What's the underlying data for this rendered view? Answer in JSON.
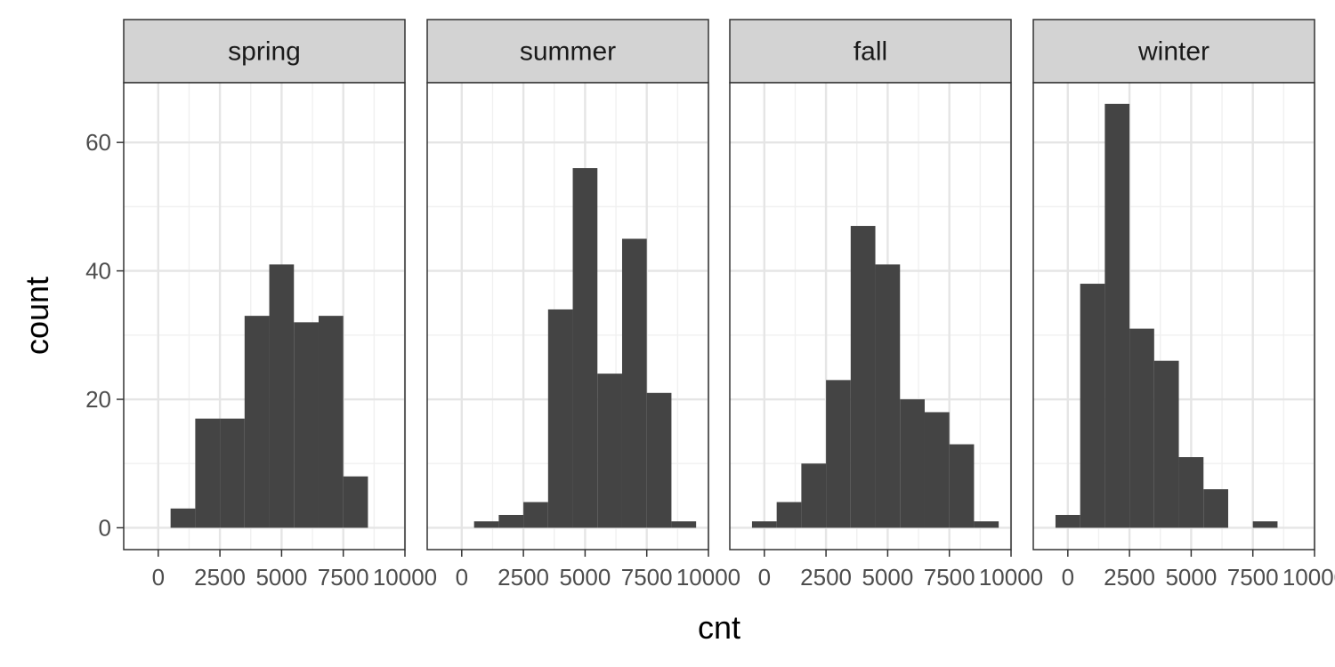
{
  "chart_data": {
    "type": "bar",
    "subtype": "faceted-histogram",
    "xlabel": "cnt",
    "ylabel": "count",
    "xlim": [
      -1400,
      10000
    ],
    "ylim": [
      -3.4,
      69.3
    ],
    "x_ticks": [
      0,
      2500,
      5000,
      7500,
      10000
    ],
    "x_tick_labels": [
      "0",
      "2500",
      "5000",
      "7500",
      "10000"
    ],
    "y_ticks": [
      0,
      20,
      40,
      60
    ],
    "y_tick_labels": [
      "0",
      "20",
      "40",
      "60"
    ],
    "grid": true,
    "bin_width": 1000,
    "panels": [
      {
        "name": "spring",
        "bins": [
          {
            "x": 1000,
            "count": 3
          },
          {
            "x": 2000,
            "count": 17
          },
          {
            "x": 3000,
            "count": 17
          },
          {
            "x": 4000,
            "count": 33
          },
          {
            "x": 5000,
            "count": 41
          },
          {
            "x": 6000,
            "count": 32
          },
          {
            "x": 7000,
            "count": 33
          },
          {
            "x": 8000,
            "count": 8
          }
        ]
      },
      {
        "name": "summer",
        "bins": [
          {
            "x": 1000,
            "count": 1
          },
          {
            "x": 2000,
            "count": 2
          },
          {
            "x": 3000,
            "count": 4
          },
          {
            "x": 4000,
            "count": 34
          },
          {
            "x": 5000,
            "count": 56
          },
          {
            "x": 6000,
            "count": 24
          },
          {
            "x": 7000,
            "count": 45
          },
          {
            "x": 8000,
            "count": 21
          },
          {
            "x": 9000,
            "count": 1
          }
        ]
      },
      {
        "name": "fall",
        "bins": [
          {
            "x": 0,
            "count": 1
          },
          {
            "x": 1000,
            "count": 4
          },
          {
            "x": 2000,
            "count": 10
          },
          {
            "x": 3000,
            "count": 23
          },
          {
            "x": 4000,
            "count": 47
          },
          {
            "x": 5000,
            "count": 41
          },
          {
            "x": 6000,
            "count": 20
          },
          {
            "x": 7000,
            "count": 18
          },
          {
            "x": 8000,
            "count": 13
          },
          {
            "x": 9000,
            "count": 1
          }
        ]
      },
      {
        "name": "winter",
        "bins": [
          {
            "x": 0,
            "count": 2
          },
          {
            "x": 1000,
            "count": 38
          },
          {
            "x": 2000,
            "count": 66
          },
          {
            "x": 3000,
            "count": 31
          },
          {
            "x": 4000,
            "count": 26
          },
          {
            "x": 5000,
            "count": 11
          },
          {
            "x": 6000,
            "count": 6
          },
          {
            "x": 8000,
            "count": 1
          }
        ]
      }
    ]
  }
}
